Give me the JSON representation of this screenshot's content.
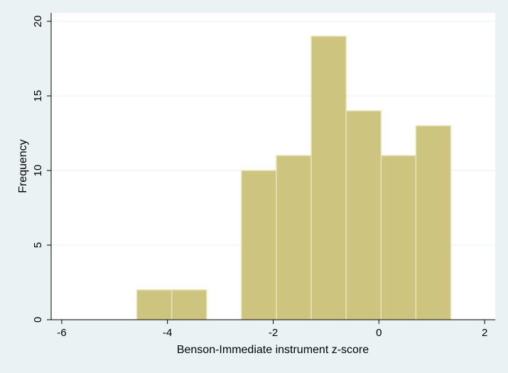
{
  "chart_data": {
    "type": "histogram",
    "xlabel": "Benson-Immediate instrument z-score",
    "ylabel": "Frequency",
    "xlim": [
      -6.2,
      2.2
    ],
    "ylim": [
      0,
      20
    ],
    "xticks": [
      -6,
      -4,
      -2,
      0,
      2
    ],
    "yticks": [
      0,
      5,
      10,
      15,
      20
    ],
    "xtick_labels": [
      "-6",
      "-4",
      "-2",
      "0",
      "2"
    ],
    "ytick_labels": [
      "0",
      "5",
      "10",
      "15",
      "20"
    ],
    "grid": "horizontal",
    "bin_width": 0.66,
    "bins": [
      {
        "x0": -4.58,
        "x1": -3.92,
        "count": 2
      },
      {
        "x0": -3.92,
        "x1": -3.26,
        "count": 2
      },
      {
        "x0": -2.6,
        "x1": -1.94,
        "count": 10
      },
      {
        "x0": -1.94,
        "x1": -1.28,
        "count": 11
      },
      {
        "x0": -1.28,
        "x1": -0.62,
        "count": 19
      },
      {
        "x0": -0.62,
        "x1": 0.04,
        "count": 14
      },
      {
        "x0": 0.04,
        "x1": 0.7,
        "count": 11
      },
      {
        "x0": 0.7,
        "x1": 1.36,
        "count": 13
      }
    ],
    "colors": {
      "bar_fill": "#cdc47f",
      "bar_edge": "#e8e4b8",
      "plot_bg": "#ffffff",
      "outer_bg": "#eaf2f3",
      "grid": "#eaf2f3"
    }
  }
}
